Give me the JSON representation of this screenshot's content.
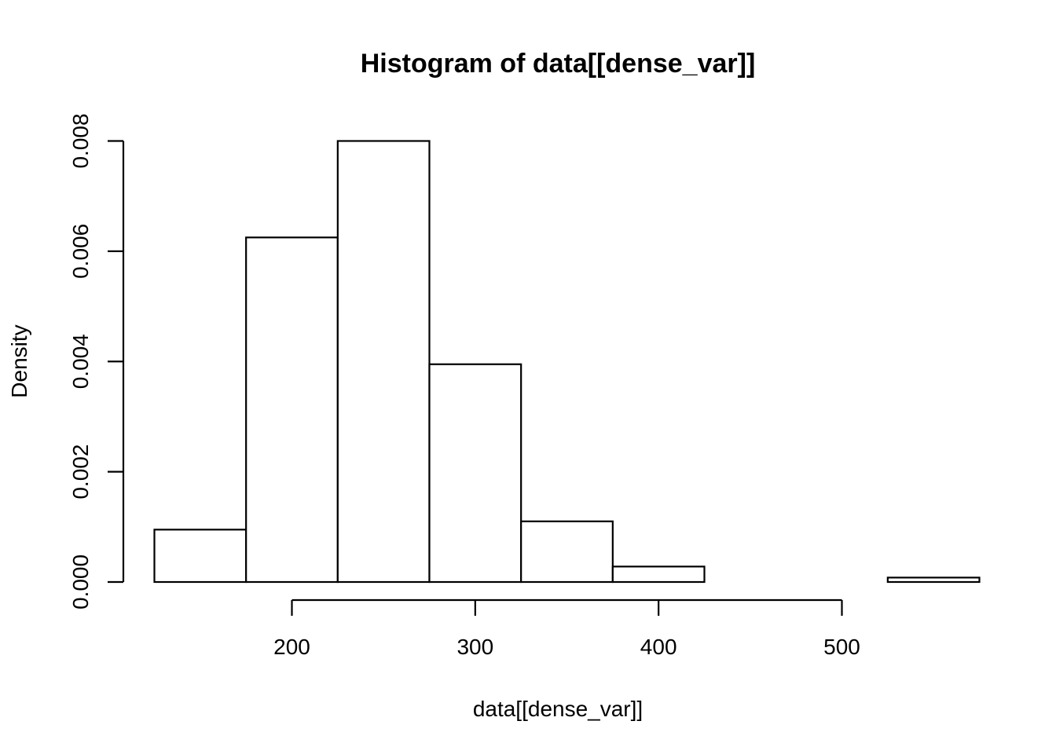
{
  "chart_data": {
    "type": "bar",
    "title": "Histogram of data[[dense_var]]",
    "xlabel": "data[[dense_var]]",
    "ylabel": "Density",
    "bins": [
      {
        "start": 125,
        "end": 175,
        "density": 0.00095
      },
      {
        "start": 175,
        "end": 225,
        "density": 0.00625
      },
      {
        "start": 225,
        "end": 275,
        "density": 0.008
      },
      {
        "start": 275,
        "end": 325,
        "density": 0.00395
      },
      {
        "start": 325,
        "end": 375,
        "density": 0.0011
      },
      {
        "start": 375,
        "end": 425,
        "density": 0.00028
      },
      {
        "start": 425,
        "end": 475,
        "density": 0.0
      },
      {
        "start": 475,
        "end": 525,
        "density": 0.0
      },
      {
        "start": 525,
        "end": 575,
        "density": 8e-05
      }
    ],
    "xticks": [
      200,
      300,
      400,
      500
    ],
    "xtick_labels": [
      "200",
      "300",
      "400",
      "500"
    ],
    "yticks": [
      0,
      0.002,
      0.004,
      0.006,
      0.008
    ],
    "ytick_labels": [
      "0.000",
      "0.002",
      "0.004",
      "0.006",
      "0.008"
    ],
    "xlim": [
      110,
      575
    ],
    "ylim": [
      0,
      0.0085
    ],
    "grid": false,
    "legend": "none",
    "bar_fill": "#ffffff",
    "bar_stroke": "#000000"
  }
}
